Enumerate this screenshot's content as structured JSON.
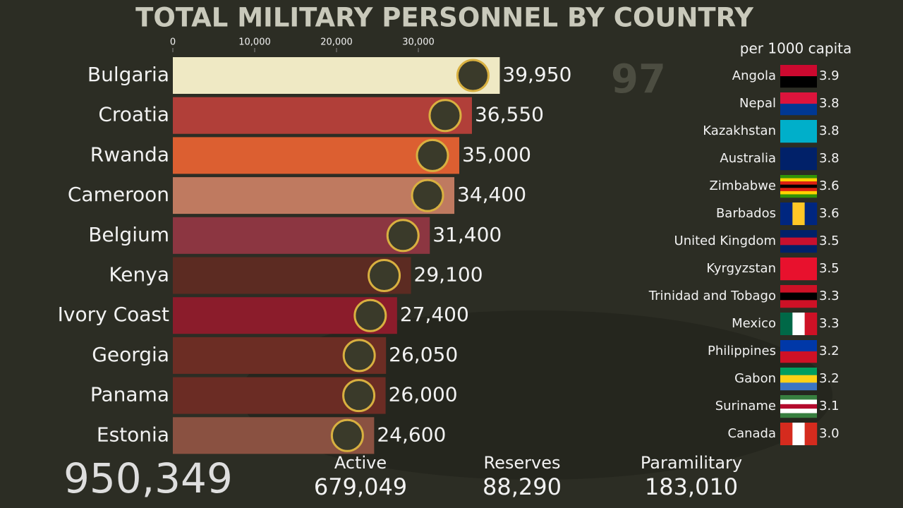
{
  "chart_data": {
    "type": "bar",
    "orientation": "horizontal",
    "title": "TOTAL MILITARY PERSONNEL BY COUNTRY",
    "categories": [
      "Bulgaria",
      "Croatia",
      "Rwanda",
      "Cameroon",
      "Belgium",
      "Kenya",
      "Ivory Coast",
      "Georgia",
      "Panama",
      "Estonia"
    ],
    "values": [
      39950,
      36550,
      35000,
      34400,
      31400,
      29100,
      27400,
      26050,
      26000,
      24600
    ],
    "value_labels": [
      "39,950",
      "36,550",
      "35,000",
      "34,400",
      "31,400",
      "29,100",
      "27,400",
      "26,050",
      "26,000",
      "24,600"
    ],
    "colors": [
      "#efe9c4",
      "#b13f39",
      "#dc5f31",
      "#bf7a60",
      "#8c3641",
      "#5c2b22",
      "#8b1c2b",
      "#6c2d24",
      "#6b2c24",
      "#8a5141"
    ],
    "xlim": [
      0,
      40000
    ],
    "xticks": [
      0,
      {
        "value": 10000,
        "label": "10,000"
      },
      {
        "value": 20000,
        "label": "20,000"
      },
      {
        "value": 30000,
        "label": "30,000"
      }
    ]
  },
  "frame_label": "97",
  "per_capita": {
    "title": "per 1000 capita",
    "rows": [
      {
        "country": "Angola",
        "value": "3.9"
      },
      {
        "country": "Nepal",
        "value": "3.8"
      },
      {
        "country": "Kazakhstan",
        "value": "3.8"
      },
      {
        "country": "Australia",
        "value": "3.8"
      },
      {
        "country": "Zimbabwe",
        "value": "3.6"
      },
      {
        "country": "Barbados",
        "value": "3.6"
      },
      {
        "country": "United Kingdom",
        "value": "3.5"
      },
      {
        "country": "Kyrgyzstan",
        "value": "3.5"
      },
      {
        "country": "Trinidad and Tobago",
        "value": "3.3"
      },
      {
        "country": "Mexico",
        "value": "3.3"
      },
      {
        "country": "Philippines",
        "value": "3.2"
      },
      {
        "country": "Gabon",
        "value": "3.2"
      },
      {
        "country": "Suriname",
        "value": "3.1"
      },
      {
        "country": "Canada",
        "value": "3.0"
      }
    ]
  },
  "summary": {
    "total": "950,349",
    "items": [
      {
        "label": "Active",
        "value": "679,049"
      },
      {
        "label": "Reserves",
        "value": "88,290"
      },
      {
        "label": "Paramilitary",
        "value": "183,010"
      }
    ]
  }
}
